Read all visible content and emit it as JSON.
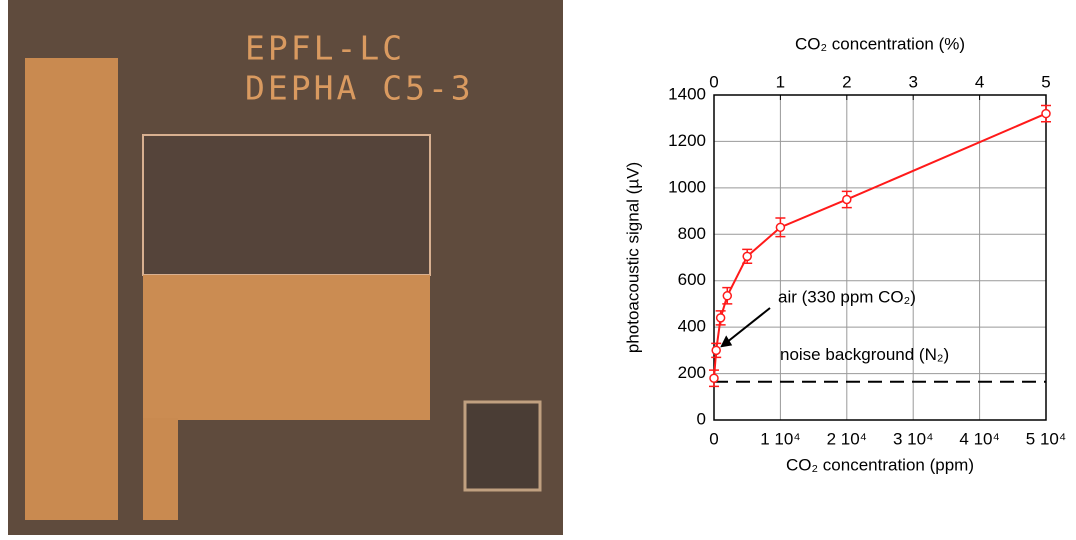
{
  "photo": {
    "labels": [
      "EPFL-LC",
      "DEPHA C5-3"
    ]
  },
  "chart_data": {
    "type": "line",
    "xlabel": "CO₂ concentration (ppm)",
    "ylabel": "photoacoustic signal (µV)",
    "x2label": "CO₂ concentration (%)",
    "x": [
      0,
      330,
      1000,
      2000,
      5000,
      10000,
      20000,
      50000
    ],
    "series": [
      {
        "color": "#ff1a1a",
        "values": [
          180,
          300,
          440,
          535,
          705,
          830,
          950,
          1320
        ],
        "errors": [
          35,
          30,
          30,
          35,
          30,
          40,
          35,
          35
        ]
      }
    ],
    "xlim": [
      0,
      50000
    ],
    "xticks": [
      0,
      {
        "value": 10000,
        "label": "1 10⁴"
      },
      {
        "value": 20000,
        "label": "2 10⁴"
      },
      {
        "value": 30000,
        "label": "3 10⁴"
      },
      {
        "value": 40000,
        "label": "4 10⁴"
      },
      {
        "value": 50000,
        "label": "5 10⁴"
      }
    ],
    "x2lim": [
      0,
      5
    ],
    "x2ticks": [
      0,
      1,
      2,
      3,
      4,
      5
    ],
    "ylim": [
      0,
      1400
    ],
    "yticks": [
      0,
      200,
      400,
      600,
      800,
      1000,
      1200,
      1400
    ],
    "grid": true,
    "reference_line": {
      "value": 165,
      "label": "noise background (N₂)"
    },
    "annotation": {
      "text": "air (330 ppm CO₂)",
      "x": 330,
      "y": 300
    }
  }
}
